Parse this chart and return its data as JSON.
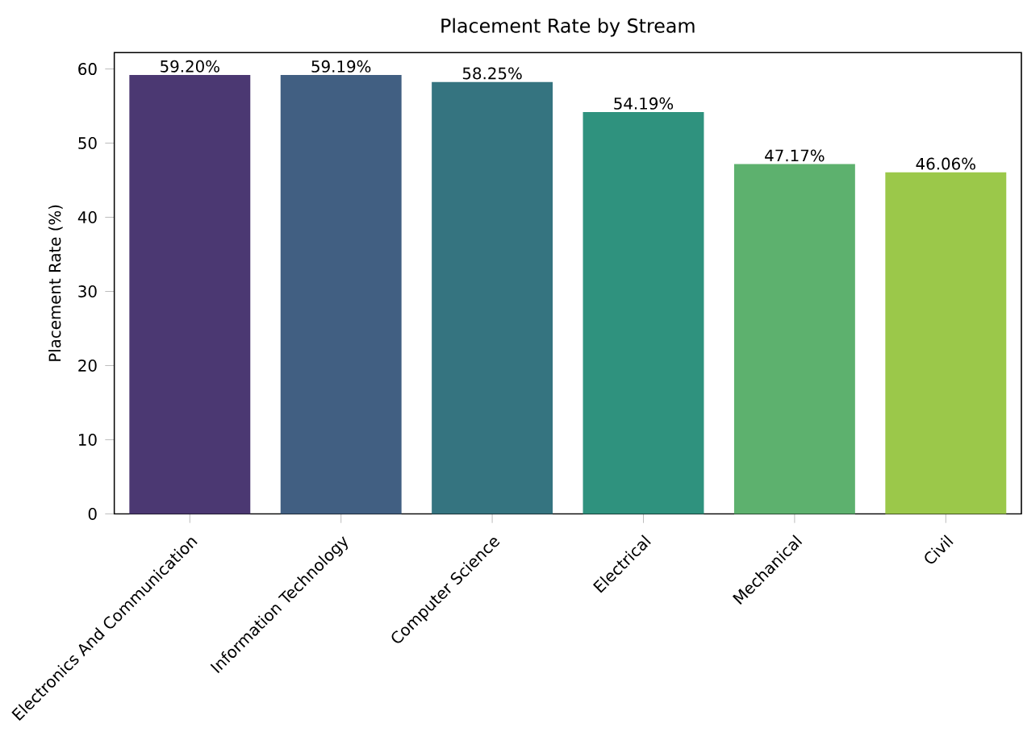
{
  "chart_data": {
    "type": "bar",
    "title": "Placement Rate by Stream",
    "ylabel": "Placement Rate (%)",
    "categories": [
      "Electronics And Communication",
      "Information Technology",
      "Computer Science",
      "Electrical",
      "Mechanical",
      "Civil"
    ],
    "values": [
      59.2,
      59.19,
      58.25,
      54.19,
      47.17,
      46.06
    ],
    "value_labels": [
      "59.20%",
      "59.19%",
      "58.25%",
      "54.19%",
      "47.17%",
      "46.06%"
    ],
    "colors": [
      "#4b3872",
      "#415f82",
      "#357480",
      "#2f927e",
      "#5db16e",
      "#9bc84a"
    ],
    "ylim": [
      0,
      62.2
    ],
    "yticks": [
      0,
      10,
      20,
      30,
      40,
      50,
      60
    ]
  }
}
